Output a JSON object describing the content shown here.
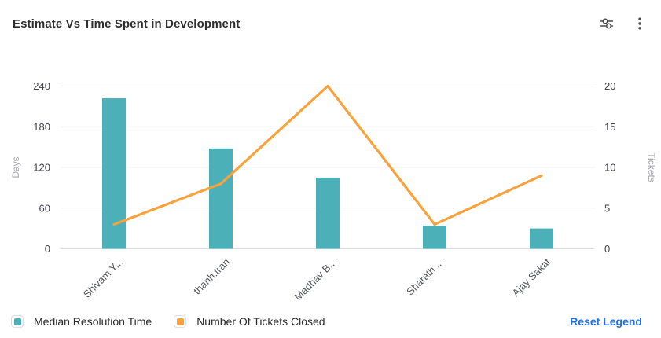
{
  "header": {
    "title": "Estimate Vs Time Spent in Development",
    "actions": [
      {
        "name": "tune-sliders-icon"
      },
      {
        "name": "kebab-menu-icon"
      }
    ]
  },
  "chart_data": {
    "type": "bar+line combo",
    "categories": [
      "Shivam Y...",
      "thanh.tran",
      "Madhav B...",
      "Sharath ...",
      "Ajay Sakat"
    ],
    "series": [
      {
        "name": "Median Resolution Time",
        "type": "bar",
        "axis": "left",
        "color": "#4BB0B8",
        "values": [
          222,
          148,
          105,
          34,
          30
        ]
      },
      {
        "name": "Number Of Tickets Closed",
        "type": "line",
        "axis": "right",
        "color": "#F9A23B",
        "values": [
          3,
          8,
          20,
          3,
          9
        ]
      }
    ],
    "left_axis": {
      "label": "Days",
      "ticks": [
        0,
        60,
        120,
        180,
        240
      ],
      "min": 0,
      "max": 240
    },
    "right_axis": {
      "label": "Tickets",
      "ticks": [
        0,
        5,
        10,
        15,
        20
      ],
      "min": 0,
      "max": 20
    },
    "grid": true,
    "legend_position": "bottom",
    "x_label_rotation": 45
  },
  "footer": {
    "reset_label": "Reset Legend",
    "link_color": "#2271E5"
  }
}
